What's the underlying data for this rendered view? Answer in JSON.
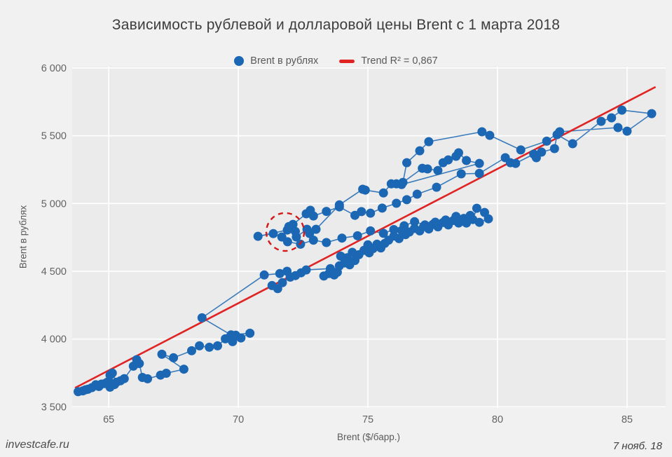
{
  "header": {
    "title": "Зависимость рублевой и долларовой цены Brent с 1 марта 2018"
  },
  "legend": {
    "series_label": "Brent в рублях",
    "trend_label": "Trend R² = 0,867"
  },
  "footer": {
    "source": "investcafe.ru",
    "date": "7 нояб. 18"
  },
  "chart_data": {
    "type": "scatter",
    "title": "Зависимость рублевой и долларовой цены Brent с 1 марта 2018",
    "xlabel": "Brent ($/барр.)",
    "ylabel": "Brent в рублях",
    "xlim": [
      63.59,
      86.49
    ],
    "ylim": [
      3492,
      6010
    ],
    "grid": true,
    "legend_position": "top-center",
    "x_ticks": [
      {
        "v": 65,
        "label": "65"
      },
      {
        "v": 70,
        "label": "70"
      },
      {
        "v": 75,
        "label": "75"
      },
      {
        "v": 80,
        "label": "80"
      },
      {
        "v": 85,
        "label": "85"
      }
    ],
    "y_ticks": [
      {
        "v": 3500,
        "label": "3 500"
      },
      {
        "v": 4000,
        "label": "4 000"
      },
      {
        "v": 4500,
        "label": "4 500"
      },
      {
        "v": 5000,
        "label": "5 000"
      },
      {
        "v": 5500,
        "label": "5 500"
      },
      {
        "v": 6000,
        "label": "6 000"
      }
    ],
    "colors": {
      "point": "#1b67b3",
      "line": "#1b67b3",
      "trend": "#e02424",
      "annotation": "#d41717",
      "plot_bg": "#ebebec",
      "grid": "#ffffff",
      "page_bg": "#f1f1f1",
      "tick_text": "#636363"
    },
    "trend": {
      "label": "Trend R² = 0,867",
      "r_squared": "0,867",
      "x1": 63.7,
      "y1": 3640,
      "x2": 86.1,
      "y2": 5860
    },
    "annotation_circle": {
      "cx": 71.81,
      "cy": 4790,
      "radius_usd": 0.73,
      "radius_rub": 140
    },
    "series": [
      {
        "name": "Brent в рублях",
        "connected": true,
        "points": [
          [
            64.2,
            3630
          ],
          [
            64.0,
            3618
          ],
          [
            63.82,
            3612
          ],
          [
            64.1,
            3626
          ],
          [
            64.35,
            3642
          ],
          [
            64.5,
            3663
          ],
          [
            64.62,
            3650
          ],
          [
            64.72,
            3668
          ],
          [
            64.85,
            3672
          ],
          [
            64.95,
            3683
          ],
          [
            65.05,
            3645
          ],
          [
            65.12,
            3671
          ],
          [
            65.22,
            3664
          ],
          [
            65.05,
            3734
          ],
          [
            65.14,
            3749
          ],
          [
            65.3,
            3682
          ],
          [
            65.45,
            3692
          ],
          [
            65.6,
            3708
          ],
          [
            65.95,
            3800
          ],
          [
            66.08,
            3848
          ],
          [
            66.18,
            3820
          ],
          [
            66.3,
            3717
          ],
          [
            66.5,
            3707
          ],
          [
            67.0,
            3734
          ],
          [
            67.22,
            3748
          ],
          [
            67.9,
            3778
          ],
          [
            67.05,
            3888
          ],
          [
            67.5,
            3862
          ],
          [
            68.2,
            3914
          ],
          [
            68.5,
            3950
          ],
          [
            68.88,
            3940
          ],
          [
            69.2,
            3950
          ],
          [
            69.5,
            4002
          ],
          [
            69.65,
            4008
          ],
          [
            69.78,
            3981
          ],
          [
            69.9,
            4028
          ],
          [
            70.1,
            4008
          ],
          [
            70.45,
            4043
          ],
          [
            69.72,
            4031
          ],
          [
            68.6,
            4157
          ],
          [
            71.0,
            4473
          ],
          [
            71.6,
            4483
          ],
          [
            71.88,
            4500
          ],
          [
            72.0,
            4457
          ],
          [
            71.7,
            4416
          ],
          [
            71.52,
            4372
          ],
          [
            71.3,
            4395
          ],
          [
            72.2,
            4468
          ],
          [
            72.42,
            4489
          ],
          [
            72.62,
            4510
          ],
          [
            73.55,
            4520
          ],
          [
            73.7,
            4473
          ],
          [
            73.82,
            4493
          ],
          [
            73.5,
            4483
          ],
          [
            73.3,
            4465
          ],
          [
            73.9,
            4540
          ],
          [
            74.1,
            4562
          ],
          [
            74.3,
            4548
          ],
          [
            74.5,
            4580
          ],
          [
            74.2,
            4600
          ],
          [
            73.95,
            4612
          ],
          [
            74.4,
            4640
          ],
          [
            74.65,
            4622
          ],
          [
            74.85,
            4655
          ],
          [
            75.05,
            4636
          ],
          [
            75.2,
            4668
          ],
          [
            75.0,
            4695
          ],
          [
            75.35,
            4700
          ],
          [
            75.5,
            4672
          ],
          [
            75.65,
            4706
          ],
          [
            75.8,
            4730
          ],
          [
            76.0,
            4760
          ],
          [
            76.2,
            4741
          ],
          [
            76.45,
            4770
          ],
          [
            76.3,
            4800
          ],
          [
            76.6,
            4790
          ],
          [
            76.8,
            4816
          ],
          [
            77.0,
            4798
          ],
          [
            77.15,
            4830
          ],
          [
            77.35,
            4812
          ],
          [
            77.5,
            4845
          ],
          [
            77.7,
            4828
          ],
          [
            77.9,
            4860
          ],
          [
            78.1,
            4842
          ],
          [
            78.3,
            4875
          ],
          [
            78.5,
            4856
          ],
          [
            78.7,
            4890
          ],
          [
            78.95,
            4912
          ],
          [
            79.05,
            4882
          ],
          [
            79.2,
            4965
          ],
          [
            79.5,
            4934
          ],
          [
            79.65,
            4887
          ],
          [
            79.3,
            4861
          ],
          [
            78.8,
            4856
          ],
          [
            78.4,
            4905
          ],
          [
            78.0,
            4878
          ],
          [
            77.6,
            4862
          ],
          [
            77.2,
            4842
          ],
          [
            76.8,
            4866
          ],
          [
            76.4,
            4836
          ],
          [
            76.0,
            4808
          ],
          [
            75.6,
            4780
          ],
          [
            75.1,
            4798
          ],
          [
            74.6,
            4762
          ],
          [
            74.0,
            4745
          ],
          [
            73.4,
            4712
          ],
          [
            72.9,
            4730
          ],
          [
            72.4,
            4700
          ],
          [
            71.9,
            4718
          ],
          [
            71.68,
            4753
          ],
          [
            71.35,
            4778
          ],
          [
            70.76,
            4758
          ],
          [
            71.89,
            4804
          ],
          [
            72.11,
            4846
          ],
          [
            72.62,
            4924
          ],
          [
            72.78,
            4950
          ],
          [
            72.9,
            4908
          ],
          [
            73.4,
            4942
          ],
          [
            73.9,
            4975
          ],
          [
            74.5,
            4913
          ],
          [
            74.75,
            4940
          ],
          [
            75.1,
            4929
          ],
          [
            75.55,
            4966
          ],
          [
            76.1,
            5002
          ],
          [
            76.5,
            5028
          ],
          [
            76.9,
            5069
          ],
          [
            77.65,
            5120
          ],
          [
            78.6,
            5219
          ],
          [
            79.3,
            5222
          ],
          [
            80.3,
            5338
          ],
          [
            80.5,
            5301
          ],
          [
            80.7,
            5296
          ],
          [
            81.4,
            5364
          ],
          [
            81.5,
            5338
          ],
          [
            81.7,
            5379
          ],
          [
            82.2,
            5405
          ],
          [
            82.3,
            5508
          ],
          [
            82.9,
            5441
          ],
          [
            84.0,
            5606
          ],
          [
            84.4,
            5632
          ],
          [
            84.8,
            5689
          ],
          [
            85.95,
            5663
          ],
          [
            85.0,
            5534
          ],
          [
            84.65,
            5560
          ],
          [
            82.4,
            5529
          ],
          [
            81.9,
            5460
          ],
          [
            80.9,
            5395
          ],
          [
            79.7,
            5503
          ],
          [
            79.4,
            5529
          ],
          [
            77.35,
            5456
          ],
          [
            77.0,
            5389
          ],
          [
            76.5,
            5301
          ],
          [
            76.35,
            5156
          ],
          [
            77.1,
            5260
          ],
          [
            77.3,
            5255
          ],
          [
            77.7,
            5244
          ],
          [
            77.9,
            5301
          ],
          [
            78.1,
            5322
          ],
          [
            78.4,
            5348
          ],
          [
            78.5,
            5374
          ],
          [
            78.8,
            5317
          ],
          [
            79.3,
            5296
          ],
          [
            76.3,
            5140
          ],
          [
            76.1,
            5145
          ],
          [
            75.9,
            5145
          ],
          [
            75.6,
            5078
          ],
          [
            74.9,
            5099
          ],
          [
            74.8,
            5105
          ],
          [
            73.9,
            4990
          ],
          [
            73.0,
            4810
          ],
          [
            72.75,
            4779
          ],
          [
            72.65,
            4810
          ],
          [
            72.24,
            4753
          ],
          [
            72.2,
            4794
          ],
          [
            71.95,
            4830
          ]
        ]
      }
    ]
  }
}
